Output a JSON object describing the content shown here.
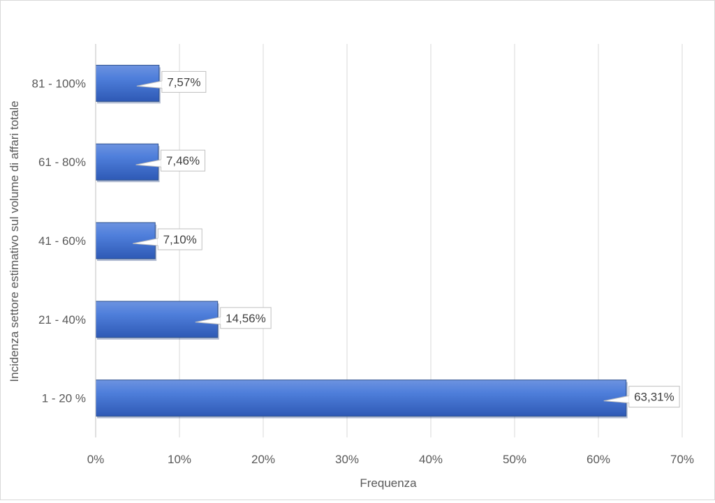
{
  "chart_data": {
    "type": "bar",
    "orientation": "horizontal",
    "categories": [
      "1 - 20 %",
      "21 - 40%",
      "41 - 60%",
      "61 - 80%",
      "81 - 100%"
    ],
    "values": [
      63.31,
      14.56,
      7.1,
      7.46,
      7.57
    ],
    "data_labels": [
      "63,31%",
      "14,56%",
      "7,10%",
      "7,46%",
      "7,57%"
    ],
    "xlabel": "Frequenza",
    "ylabel": "Incidenza settore estimativo sul volume di affari totale",
    "xlim": [
      0,
      70
    ],
    "x_ticks": [
      "0%",
      "10%",
      "20%",
      "30%",
      "40%",
      "50%",
      "60%",
      "70%"
    ],
    "grid": "vertical",
    "legend": "none",
    "bar_color": "#4472c4"
  }
}
